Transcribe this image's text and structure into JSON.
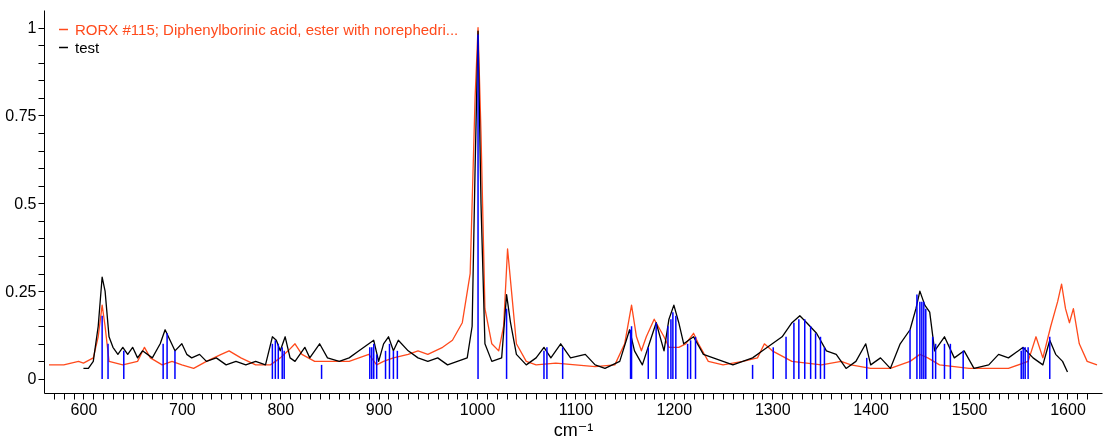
{
  "chart_data": {
    "type": "line",
    "xlabel": "cm⁻¹",
    "xlim": [
      565,
      1630
    ],
    "ylim": [
      -0.04,
      1.05
    ],
    "xticks": [
      {
        "value": 570,
        "label": null
      },
      {
        "value": 580,
        "label": null
      },
      {
        "value": 590,
        "label": null
      },
      600,
      {
        "value": 610,
        "label": null
      },
      {
        "value": 620,
        "label": null
      },
      {
        "value": 630,
        "label": null
      },
      {
        "value": 640,
        "label": null
      },
      {
        "value": 650,
        "label": null
      },
      {
        "value": 660,
        "label": null
      },
      {
        "value": 670,
        "label": null
      },
      {
        "value": 680,
        "label": null
      },
      {
        "value": 690,
        "label": null
      },
      700,
      {
        "value": 710,
        "label": null
      },
      {
        "value": 720,
        "label": null
      },
      {
        "value": 730,
        "label": null
      },
      {
        "value": 740,
        "label": null
      },
      {
        "value": 750,
        "label": null
      },
      {
        "value": 760,
        "label": null
      },
      {
        "value": 770,
        "label": null
      },
      {
        "value": 780,
        "label": null
      },
      {
        "value": 790,
        "label": null
      },
      800,
      {
        "value": 810,
        "label": null
      },
      {
        "value": 820,
        "label": null
      },
      {
        "value": 830,
        "label": null
      },
      {
        "value": 840,
        "label": null
      },
      {
        "value": 850,
        "label": null
      },
      {
        "value": 860,
        "label": null
      },
      {
        "value": 870,
        "label": null
      },
      {
        "value": 880,
        "label": null
      },
      {
        "value": 890,
        "label": null
      },
      900,
      {
        "value": 910,
        "label": null
      },
      {
        "value": 920,
        "label": null
      },
      {
        "value": 930,
        "label": null
      },
      {
        "value": 940,
        "label": null
      },
      {
        "value": 950,
        "label": null
      },
      {
        "value": 960,
        "label": null
      },
      {
        "value": 970,
        "label": null
      },
      {
        "value": 980,
        "label": null
      },
      {
        "value": 990,
        "label": null
      },
      1000,
      {
        "value": 1010,
        "label": null
      },
      {
        "value": 1020,
        "label": null
      },
      {
        "value": 1030,
        "label": null
      },
      {
        "value": 1040,
        "label": null
      },
      {
        "value": 1050,
        "label": null
      },
      {
        "value": 1060,
        "label": null
      },
      {
        "value": 1070,
        "label": null
      },
      {
        "value": 1080,
        "label": null
      },
      {
        "value": 1090,
        "label": null
      },
      1100,
      {
        "value": 1110,
        "label": null
      },
      {
        "value": 1120,
        "label": null
      },
      {
        "value": 1130,
        "label": null
      },
      {
        "value": 1140,
        "label": null
      },
      {
        "value": 1150,
        "label": null
      },
      {
        "value": 1160,
        "label": null
      },
      {
        "value": 1170,
        "label": null
      },
      {
        "value": 1180,
        "label": null
      },
      {
        "value": 1190,
        "label": null
      },
      1200,
      {
        "value": 1210,
        "label": null
      },
      {
        "value": 1220,
        "label": null
      },
      {
        "value": 1230,
        "label": null
      },
      {
        "value": 1240,
        "label": null
      },
      {
        "value": 1250,
        "label": null
      },
      {
        "value": 1260,
        "label": null
      },
      {
        "value": 1270,
        "label": null
      },
      {
        "value": 1280,
        "label": null
      },
      {
        "value": 1290,
        "label": null
      },
      1300,
      {
        "value": 1310,
        "label": null
      },
      {
        "value": 1320,
        "label": null
      },
      {
        "value": 1330,
        "label": null
      },
      {
        "value": 1340,
        "label": null
      },
      {
        "value": 1350,
        "label": null
      },
      {
        "value": 1360,
        "label": null
      },
      {
        "value": 1370,
        "label": null
      },
      {
        "value": 1380,
        "label": null
      },
      {
        "value": 1390,
        "label": null
      },
      1400,
      {
        "value": 1410,
        "label": null
      },
      {
        "value": 1420,
        "label": null
      },
      {
        "value": 1430,
        "label": null
      },
      {
        "value": 1440,
        "label": null
      },
      {
        "value": 1450,
        "label": null
      },
      {
        "value": 1460,
        "label": null
      },
      {
        "value": 1470,
        "label": null
      },
      {
        "value": 1480,
        "label": null
      },
      {
        "value": 1490,
        "label": null
      },
      1500,
      {
        "value": 1510,
        "label": null
      },
      {
        "value": 1520,
        "label": null
      },
      {
        "value": 1530,
        "label": null
      },
      {
        "value": 1540,
        "label": null
      },
      {
        "value": 1550,
        "label": null
      },
      {
        "value": 1560,
        "label": null
      },
      {
        "value": 1570,
        "label": null
      },
      {
        "value": 1580,
        "label": null
      },
      {
        "value": 1590,
        "label": null
      },
      1600,
      {
        "value": 1610,
        "label": null
      },
      {
        "value": 1620,
        "label": null
      }
    ],
    "yticks": [
      0,
      {
        "value": 0.05,
        "label": null
      },
      {
        "value": 0.1,
        "label": null
      },
      {
        "value": 0.15,
        "label": null
      },
      {
        "value": 0.2,
        "label": null
      },
      0.25,
      {
        "value": 0.3,
        "label": null
      },
      {
        "value": 0.35,
        "label": null
      },
      {
        "value": 0.4,
        "label": null
      },
      {
        "value": 0.45,
        "label": null
      },
      0.5,
      {
        "value": 0.55,
        "label": null
      },
      {
        "value": 0.6,
        "label": null
      },
      {
        "value": 0.65,
        "label": null
      },
      {
        "value": 0.7,
        "label": null
      },
      0.75,
      {
        "value": 0.8,
        "label": null
      },
      {
        "value": 0.85,
        "label": null
      },
      {
        "value": 0.9,
        "label": null
      },
      {
        "value": 0.95,
        "label": null
      },
      1
    ],
    "legend": "top left",
    "grid": false,
    "marker": "none",
    "series": [
      {
        "name": "RORX #115; Diphenylborinic acid, ester with norephedri...",
        "color": "#ff4a1c",
        "x": [
          565,
          580,
          595,
          600,
          610,
          615,
          619,
          622,
          626,
          640,
          655,
          662,
          668,
          680,
          690,
          700,
          712,
          725,
          740,
          748,
          760,
          775,
          790,
          800,
          808,
          815,
          822,
          835,
          850,
          870,
          880,
          890,
          898,
          905,
          915,
          930,
          940,
          950,
          965,
          975,
          985,
          993,
          998,
          1001,
          1004,
          1008,
          1015,
          1022,
          1027,
          1031,
          1035,
          1040,
          1050,
          1060,
          1080,
          1100,
          1120,
          1140,
          1150,
          1157,
          1162,
          1167,
          1172,
          1180,
          1190,
          1195,
          1205,
          1212,
          1220,
          1225,
          1235,
          1250,
          1270,
          1285,
          1292,
          1300,
          1320,
          1350,
          1370,
          1380,
          1400,
          1420,
          1440,
          1450,
          1458,
          1470,
          1500,
          1540,
          1560,
          1568,
          1575,
          1583,
          1590,
          1594,
          1598,
          1602,
          1606,
          1612,
          1620,
          1630
        ],
        "values": [
          0.04,
          0.04,
          0.05,
          0.045,
          0.06,
          0.12,
          0.21,
          0.15,
          0.05,
          0.04,
          0.05,
          0.09,
          0.06,
          0.04,
          0.05,
          0.04,
          0.03,
          0.05,
          0.07,
          0.08,
          0.06,
          0.04,
          0.04,
          0.06,
          0.08,
          0.1,
          0.07,
          0.05,
          0.05,
          0.05,
          0.06,
          0.07,
          0.04,
          0.05,
          0.06,
          0.07,
          0.08,
          0.07,
          0.09,
          0.11,
          0.16,
          0.3,
          0.8,
          1.0,
          0.7,
          0.2,
          0.1,
          0.08,
          0.15,
          0.37,
          0.25,
          0.1,
          0.05,
          0.04,
          0.045,
          0.04,
          0.035,
          0.04,
          0.1,
          0.21,
          0.12,
          0.08,
          0.12,
          0.17,
          0.12,
          0.09,
          0.09,
          0.1,
          0.13,
          0.1,
          0.05,
          0.04,
          0.05,
          0.06,
          0.1,
          0.08,
          0.05,
          0.04,
          0.05,
          0.04,
          0.03,
          0.03,
          0.05,
          0.07,
          0.06,
          0.04,
          0.03,
          0.03,
          0.05,
          0.12,
          0.06,
          0.15,
          0.22,
          0.27,
          0.2,
          0.16,
          0.2,
          0.1,
          0.05,
          0.04
        ]
      },
      {
        "name": "test",
        "color": "#000000",
        "x": [
          600,
          605,
          610,
          615,
          619,
          622,
          626,
          630,
          635,
          640,
          645,
          650,
          655,
          660,
          670,
          678,
          683,
          688,
          693,
          700,
          705,
          710,
          718,
          725,
          735,
          745,
          755,
          765,
          775,
          785,
          792,
          796,
          800,
          805,
          810,
          815,
          825,
          830,
          840,
          848,
          860,
          870,
          880,
          890,
          895,
          900,
          905,
          910,
          915,
          920,
          930,
          940,
          950,
          960,
          970,
          980,
          990,
          995,
          998,
          1001,
          1004,
          1008,
          1015,
          1025,
          1030,
          1034,
          1040,
          1050,
          1060,
          1068,
          1075,
          1085,
          1095,
          1110,
          1120,
          1130,
          1145,
          1155,
          1160,
          1168,
          1175,
          1182,
          1190,
          1195,
          1200,
          1205,
          1210,
          1220,
          1230,
          1240,
          1250,
          1260,
          1270,
          1280,
          1290,
          1300,
          1310,
          1320,
          1328,
          1335,
          1345,
          1355,
          1365,
          1375,
          1385,
          1395,
          1400,
          1410,
          1420,
          1430,
          1440,
          1446,
          1450,
          1455,
          1460,
          1465,
          1475,
          1485,
          1495,
          1505,
          1520,
          1530,
          1540,
          1555,
          1565,
          1575,
          1582,
          1588,
          1595,
          1600
        ],
        "values": [
          0.03,
          0.03,
          0.05,
          0.15,
          0.29,
          0.25,
          0.12,
          0.09,
          0.07,
          0.09,
          0.07,
          0.09,
          0.06,
          0.08,
          0.06,
          0.1,
          0.14,
          0.11,
          0.08,
          0.1,
          0.07,
          0.06,
          0.07,
          0.05,
          0.06,
          0.04,
          0.05,
          0.04,
          0.05,
          0.04,
          0.12,
          0.11,
          0.08,
          0.12,
          0.06,
          0.05,
          0.09,
          0.06,
          0.1,
          0.06,
          0.05,
          0.06,
          0.08,
          0.1,
          0.11,
          0.05,
          0.1,
          0.12,
          0.08,
          0.11,
          0.08,
          0.06,
          0.05,
          0.06,
          0.04,
          0.05,
          0.06,
          0.15,
          0.6,
          0.99,
          0.5,
          0.1,
          0.05,
          0.06,
          0.24,
          0.16,
          0.07,
          0.04,
          0.06,
          0.09,
          0.06,
          0.1,
          0.06,
          0.07,
          0.04,
          0.03,
          0.05,
          0.14,
          0.08,
          0.04,
          0.1,
          0.16,
          0.08,
          0.17,
          0.21,
          0.16,
          0.1,
          0.12,
          0.07,
          0.06,
          0.05,
          0.04,
          0.05,
          0.06,
          0.08,
          0.1,
          0.12,
          0.16,
          0.18,
          0.16,
          0.13,
          0.08,
          0.07,
          0.03,
          0.05,
          0.1,
          0.04,
          0.06,
          0.03,
          0.1,
          0.14,
          0.2,
          0.25,
          0.21,
          0.19,
          0.08,
          0.12,
          0.06,
          0.08,
          0.03,
          0.04,
          0.07,
          0.06,
          0.09,
          0.06,
          0.04,
          0.11,
          0.07,
          0.05,
          0.02
        ]
      },
      {
        "type": "bar",
        "color": "#0000ff",
        "x": [
          619,
          625,
          641,
          681,
          685,
          693,
          792,
          795,
          798,
          802,
          804,
          842,
          891,
          893,
          895,
          898,
          907,
          911,
          915,
          919,
          1001,
          1030,
          1068,
          1071,
          1087,
          1156,
          1157,
          1174,
          1182,
          1194,
          1197,
          1199,
          1202,
          1214,
          1217,
          1222,
          1280,
          1301,
          1314,
          1322,
          1327,
          1333,
          1339,
          1344,
          1349,
          1353,
          1396,
          1440,
          1447,
          1450,
          1452,
          1454,
          1456,
          1463,
          1466,
          1475,
          1481,
          1494,
          1553,
          1555,
          1557,
          1560,
          1582
        ],
        "values": [
          0.18,
          0.1,
          0.08,
          0.1,
          0.13,
          0.08,
          0.1,
          0.11,
          0.1,
          0.09,
          0.08,
          0.04,
          0.09,
          0.09,
          0.1,
          0.07,
          0.08,
          0.1,
          0.08,
          0.08,
          0.98,
          0.2,
          0.08,
          0.09,
          0.09,
          0.14,
          0.15,
          0.09,
          0.16,
          0.15,
          0.17,
          0.19,
          0.18,
          0.1,
          0.11,
          0.12,
          0.04,
          0.09,
          0.12,
          0.16,
          0.17,
          0.17,
          0.15,
          0.13,
          0.12,
          0.09,
          0.06,
          0.14,
          0.24,
          0.22,
          0.22,
          0.22,
          0.2,
          0.12,
          0.1,
          0.1,
          0.1,
          0.08,
          0.08,
          0.09,
          0.09,
          0.09,
          0.12
        ]
      }
    ]
  }
}
